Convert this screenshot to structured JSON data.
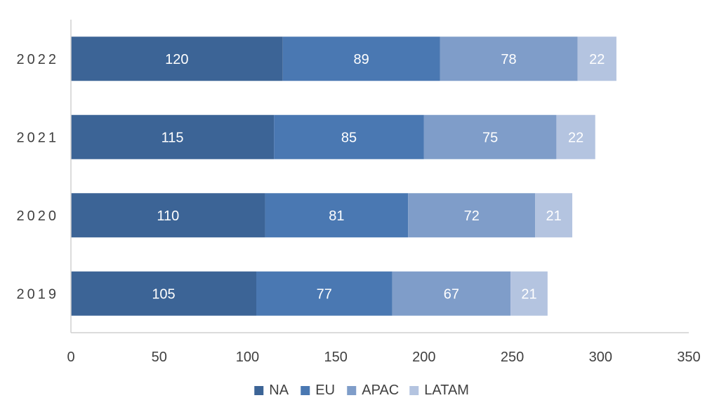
{
  "chart_data": {
    "type": "bar",
    "orientation": "horizontal",
    "stacked": true,
    "categories": [
      "2019",
      "2020",
      "2021",
      "2022"
    ],
    "series": [
      {
        "name": "NA",
        "values": [
          105,
          110,
          115,
          120
        ],
        "color": "#3C6496",
        "label_color": "#ffffff"
      },
      {
        "name": "EU",
        "values": [
          77,
          81,
          85,
          89
        ],
        "color": "#4A78B2",
        "label_color": "#ffffff"
      },
      {
        "name": "APAC",
        "values": [
          67,
          72,
          75,
          78
        ],
        "color": "#7F9DC9",
        "label_color": "#ffffff"
      },
      {
        "name": "LATAM",
        "values": [
          21,
          21,
          22,
          22
        ],
        "color": "#B4C4E0",
        "label_color": "#ffffff"
      }
    ],
    "xlim": [
      0,
      350
    ],
    "xticks": [
      0,
      50,
      100,
      150,
      200,
      250,
      300,
      350
    ],
    "grid": false,
    "legend_position": "bottom",
    "data_labels": true
  }
}
